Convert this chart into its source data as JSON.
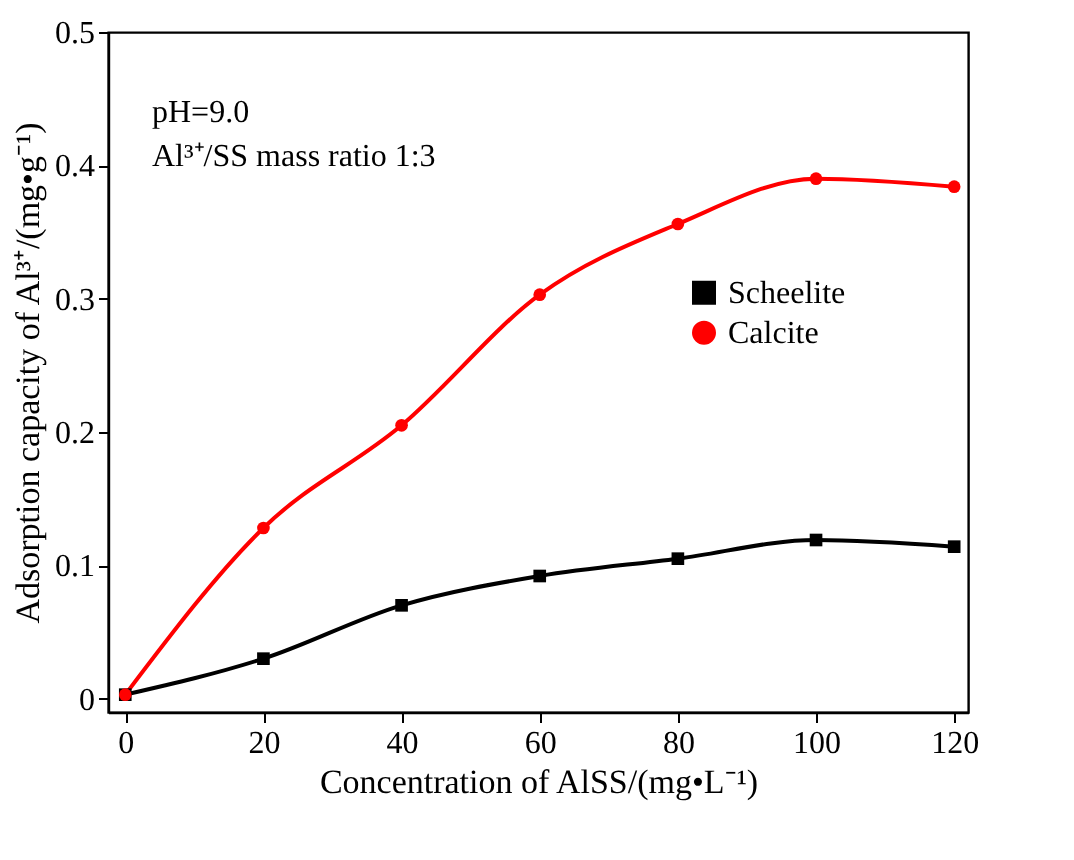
{
  "chart_data": {
    "type": "line",
    "xlabel": "Concentration of AlSS/(mg•L⁻¹)",
    "ylabel": "Adsorption capacity of Al³⁺/(mg•g⁻¹)",
    "x": [
      0,
      20,
      40,
      60,
      80,
      100,
      120
    ],
    "series": [
      {
        "name": "Scheelite",
        "color": "#000000",
        "marker": "square",
        "values": [
          0.003,
          0.03,
          0.07,
          0.092,
          0.105,
          0.119,
          0.114
        ]
      },
      {
        "name": "Calcite",
        "color": "#ff0000",
        "marker": "circle",
        "values": [
          0.003,
          0.128,
          0.205,
          0.303,
          0.356,
          0.39,
          0.384
        ]
      }
    ],
    "xlim": [
      -2.5,
      122
    ],
    "xticks": [
      0,
      20,
      40,
      60,
      80,
      100,
      120
    ],
    "ylim": [
      -0.01,
      0.5
    ],
    "yticks": [
      0,
      0.1,
      0.2,
      0.3,
      0.4,
      0.5
    ],
    "annotations": [
      "pH=9.0",
      "Al³⁺/SS mass ratio 1:3"
    ],
    "legend": "right",
    "grid": false
  }
}
